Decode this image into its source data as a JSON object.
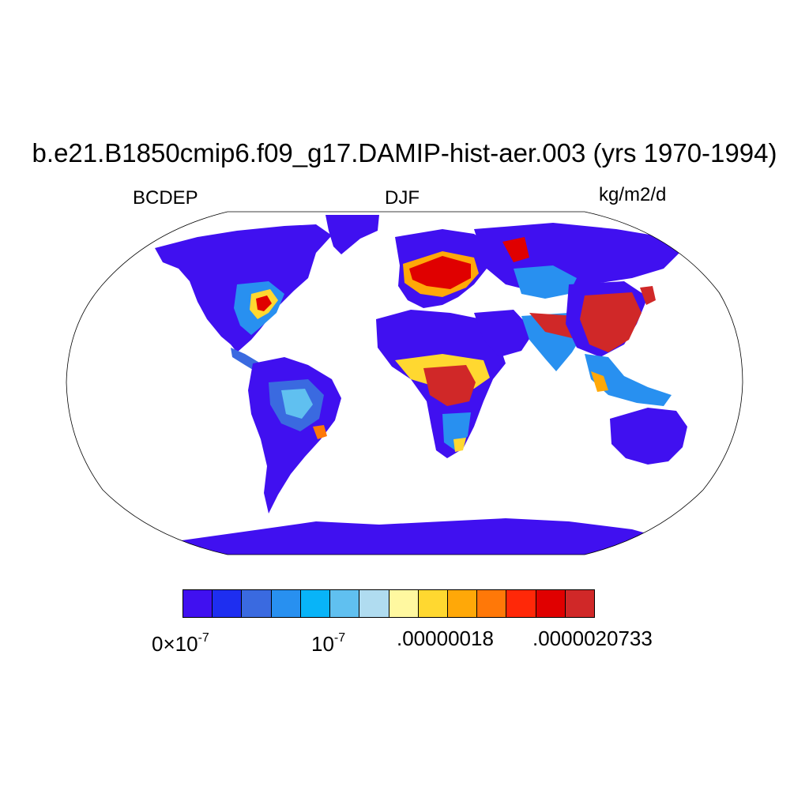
{
  "title": "b.e21.B1850cmip6.f09_g17.DAMIP-hist-aer.003 (yrs 1970-1994)",
  "variable": "BCDEP",
  "season": "DJF",
  "units": "kg/m2/d",
  "colorbar": {
    "colors": [
      "#4010f0",
      "#1e2ef0",
      "#3a6ae0",
      "#2890f0",
      "#08b4f8",
      "#60c0f0",
      "#b0dcf0",
      "#fff8a0",
      "#ffd830",
      "#ffa808",
      "#ff7808",
      "#ff2808",
      "#e00000",
      "#d02828"
    ],
    "tick_labels": {
      "t0_base": "0×10",
      "t0_exp": "-7",
      "t1_base": "10",
      "t1_exp": "-7",
      "t2": ".00000018",
      "t3": ".0000020733"
    }
  }
}
